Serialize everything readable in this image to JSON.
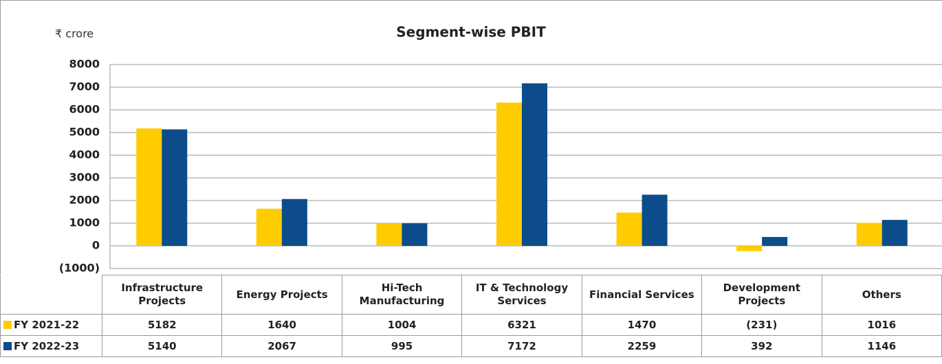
{
  "chart_data": {
    "type": "bar",
    "title": "Segment-wise PBIT",
    "y_axis_label": "₹ crore",
    "categories": [
      "Infrastructure Projects",
      "Energy Projects",
      "Hi-Tech Manufacturing",
      "IT & Technology Services",
      "Financial Services",
      "Development Projects",
      "Others"
    ],
    "series": [
      {
        "name": "FY 2021-22",
        "color": "#ffcc00",
        "values": [
          5182,
          1640,
          1004,
          6321,
          1470,
          -231,
          1016
        ],
        "value_labels": [
          "5182",
          "1640",
          "1004",
          "6321",
          "1470",
          "(231)",
          "1016"
        ]
      },
      {
        "name": "FY 2022-23",
        "color": "#0d4c8a",
        "values": [
          5140,
          2067,
          995,
          7172,
          2259,
          392,
          1146
        ]
      }
    ],
    "ylim": [
      -1000,
      8000
    ],
    "yticks": [
      {
        "value": -1000,
        "label": "(1000)"
      },
      0,
      1000,
      2000,
      3000,
      4000,
      5000,
      6000,
      7000,
      8000
    ],
    "grid": true
  }
}
